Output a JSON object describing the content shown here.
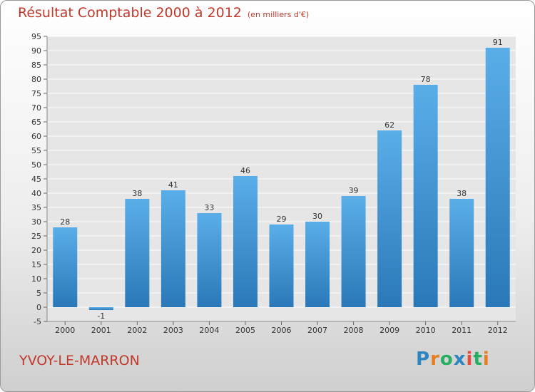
{
  "header": {
    "title": "Résultat Comptable 2000 à 2012",
    "subtitle": "(en milliers d'€)"
  },
  "footer": {
    "city": "YVOY-LE-MARRON",
    "logo_letters": [
      {
        "ch": "P",
        "color": "#2e86c1"
      },
      {
        "ch": "r",
        "color": "#e67e22"
      },
      {
        "ch": "o",
        "color": "#27ae60"
      },
      {
        "ch": "x",
        "color": "#2e86c1"
      },
      {
        "ch": "i",
        "color": "#e74c3c"
      },
      {
        "ch": "t",
        "color": "#27ae60"
      },
      {
        "ch": "i",
        "color": "#e67e22"
      }
    ]
  },
  "chart_data": {
    "type": "bar",
    "categories": [
      "2000",
      "2001",
      "2002",
      "2003",
      "2004",
      "2005",
      "2006",
      "2007",
      "2008",
      "2009",
      "2010",
      "2011",
      "2012"
    ],
    "values": [
      28,
      -1,
      38,
      41,
      33,
      46,
      29,
      30,
      39,
      62,
      78,
      38,
      91
    ],
    "ylim": [
      -5,
      95
    ],
    "ytick_step": 5,
    "grid": true,
    "bar_color": "#3a9ad9",
    "title": "Résultat Comptable 2000 à 2012",
    "xlabel": "",
    "ylabel": ""
  }
}
